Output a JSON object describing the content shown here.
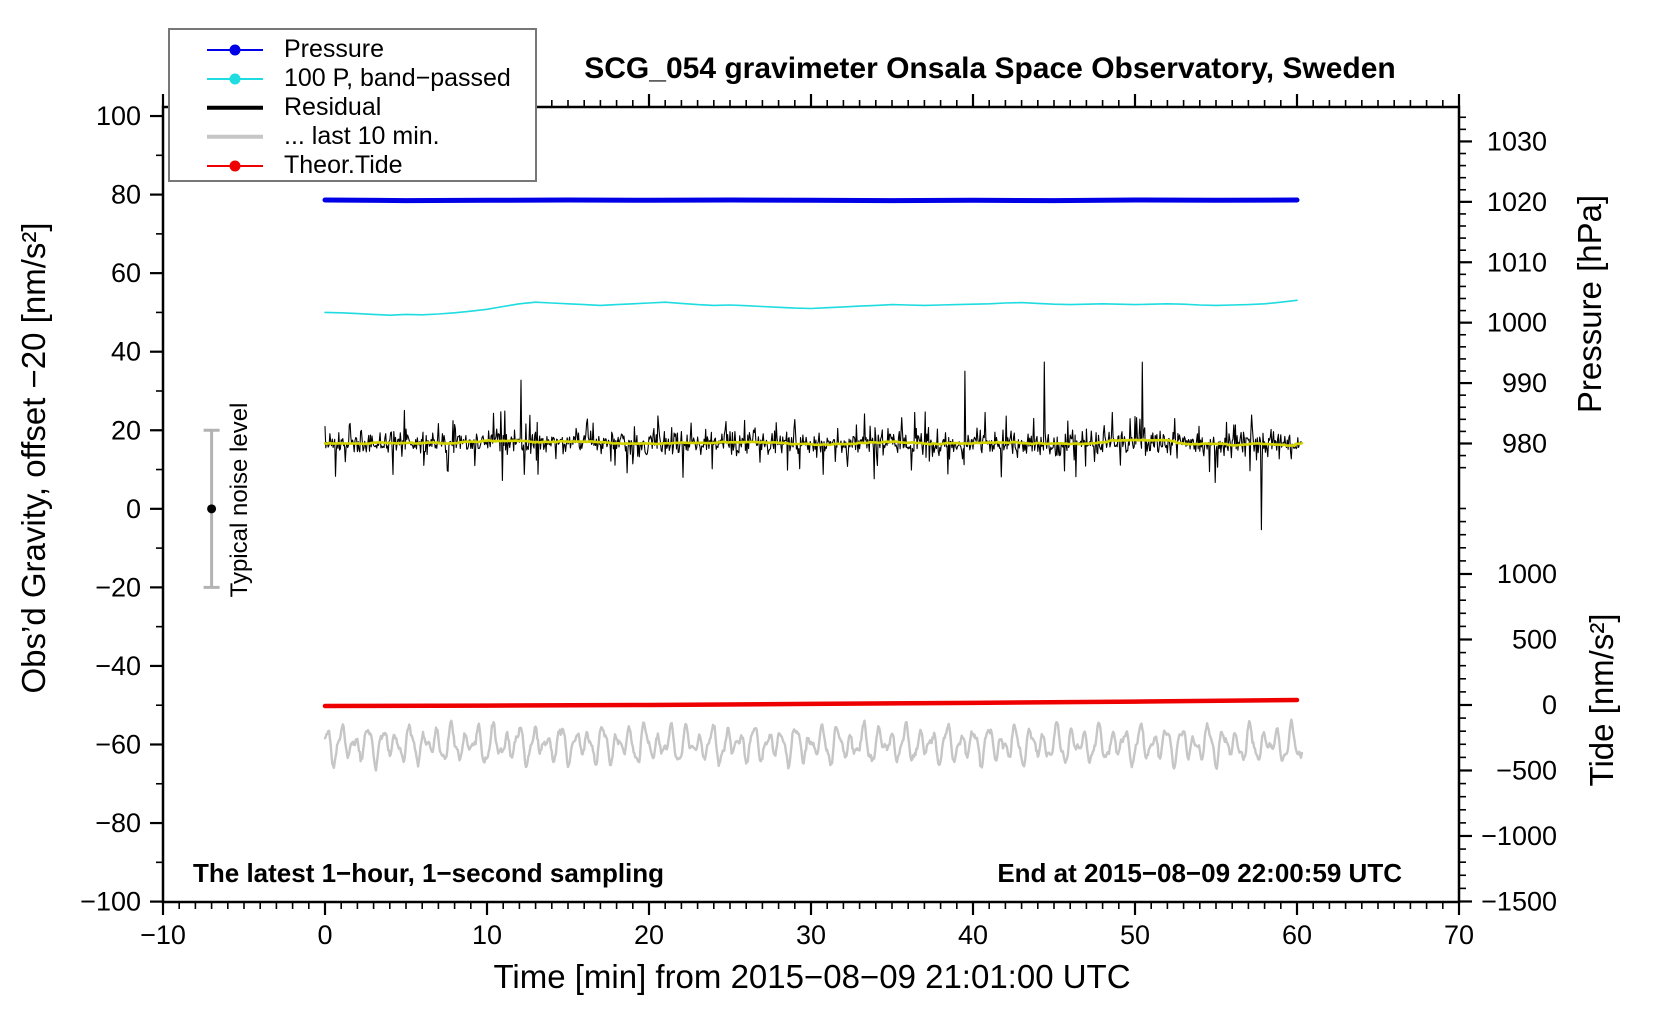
{
  "title": "SCG_054 gravimeter Onsala Space Observatory, Sweden",
  "notes": {
    "sampling": "The latest 1−hour, 1−second sampling",
    "end": "End at 2015−08−09 22:00:59 UTC",
    "noise": "Typical noise level"
  },
  "legend": {
    "items": [
      {
        "label": "Pressure",
        "color": "#0000e6",
        "style": "thin-dot"
      },
      {
        "label": "100 P, band−passed",
        "color": "#1edce0",
        "style": "thin-dot"
      },
      {
        "label": "Residual",
        "color": "#000000",
        "style": "thick"
      },
      {
        "label": "... last 10 min.",
        "color": "#c6c6c6",
        "style": "thick"
      },
      {
        "label": "Theor.Tide",
        "color": "#ee0000",
        "style": "thin-dot"
      }
    ]
  },
  "chart_data": {
    "type": "line",
    "title": "SCG_054 gravimeter Onsala Space Observatory, Sweden",
    "xlabel": "Time [min] from 2015−08−09 21:01:00 UTC",
    "x_axis": {
      "range": [
        -10,
        70
      ],
      "minor_step": 1,
      "minor_range": [
        -10,
        70
      ],
      "ticks": [
        {
          "v": -10,
          "label": "−10"
        },
        {
          "v": 0,
          "label": "0"
        },
        {
          "v": 10,
          "label": "10"
        },
        {
          "v": 20,
          "label": "20"
        },
        {
          "v": 30,
          "label": "30"
        },
        {
          "v": 40,
          "label": "40"
        },
        {
          "v": 50,
          "label": "50"
        },
        {
          "v": 60,
          "label": "60"
        },
        {
          "v": 70,
          "label": "70"
        }
      ]
    },
    "axes": {
      "gravity": {
        "label": "Obs’d Gravity, offset −20 [nm/s²]",
        "range": [
          -100.1,
          102.3
        ],
        "minor_step": 10,
        "minor_range": [
          -100,
          100
        ],
        "ticks": [
          {
            "v": 100,
            "label": "100"
          },
          {
            "v": 80,
            "label": "80"
          },
          {
            "v": 60,
            "label": "60"
          },
          {
            "v": 40,
            "label": "40"
          },
          {
            "v": 20,
            "label": "20"
          },
          {
            "v": 0,
            "label": "0"
          },
          {
            "v": -20,
            "label": "−20"
          },
          {
            "v": -40,
            "label": "−40"
          },
          {
            "v": -60,
            "label": "−60"
          },
          {
            "v": -80,
            "label": "−80"
          },
          {
            "v": -100,
            "label": "−100"
          }
        ]
      },
      "pressure": {
        "label": "Pressure [hPa]",
        "range": [
          904.1,
          1035.7
        ],
        "minor_step": 2,
        "minor_range": [
          976,
          1034
        ],
        "ticks": [
          {
            "v": 1030,
            "label": "1030"
          },
          {
            "v": 1020,
            "label": "1020"
          },
          {
            "v": 1010,
            "label": "1010"
          },
          {
            "v": 1000,
            "label": "1000"
          },
          {
            "v": 990,
            "label": "990"
          },
          {
            "v": 980,
            "label": "980"
          }
        ]
      },
      "tide": {
        "label": "Tide [nm/s²]",
        "range": [
          -1504,
          4565
        ],
        "minor_step": 100,
        "minor_range": [
          -1500,
          1500
        ],
        "ticks": [
          {
            "v": 1000,
            "label": "1000"
          },
          {
            "v": 500,
            "label": "500"
          },
          {
            "v": 0,
            "label": "0"
          },
          {
            "v": -500,
            "label": "−500"
          },
          {
            "v": -1000,
            "label": "−1000"
          },
          {
            "v": -1500,
            "label": "−1500"
          }
        ]
      }
    },
    "noise_bar": {
      "t": -7,
      "low": -20,
      "high": 20,
      "dot": 0,
      "color": "#b3b3b3"
    },
    "series": [
      {
        "name": "last10",
        "axis": "gravity",
        "color": "#c6c6c6",
        "width": 2.4,
        "generate": {
          "kind": "osc",
          "seed": 11,
          "center": -60,
          "components": [
            [
              3.1,
              0.85,
              0.5
            ],
            [
              1.7,
              1.33,
              2.1
            ],
            [
              1.3,
              0.44,
              4.0
            ]
          ],
          "noise": 0.35,
          "step": 0.05,
          "t0": 0,
          "t1": 60.3
        }
      },
      {
        "name": "theor_tide",
        "axis": "tide",
        "color": "#ee0000",
        "width": 4.5,
        "points": [
          [
            0,
            -8
          ],
          [
            10,
            -5
          ],
          [
            20,
            0
          ],
          [
            30,
            8
          ],
          [
            40,
            16
          ],
          [
            50,
            26
          ],
          [
            60,
            38
          ]
        ]
      },
      {
        "name": "residual",
        "axis": "gravity",
        "color": "#000000",
        "width": 1.1,
        "generate": {
          "kind": "noise",
          "seed": 7,
          "center": 16.8,
          "sigma": 1.5,
          "spike_prob": 0.1,
          "spike_min": 2,
          "spike_max": 8,
          "big_spike_prob": 0.006,
          "big_spike_max": 14,
          "step": 0.05,
          "t0": 0,
          "t1": 60.3
        }
      },
      {
        "name": "residual_smooth",
        "axis": "gravity",
        "color": "#d4d400",
        "width": 2.6,
        "generate": {
          "kind": "smooth-of",
          "source": "residual",
          "window": 41
        }
      },
      {
        "name": "band_passed",
        "axis": "gravity",
        "color": "#1edce0",
        "width": 1.6,
        "points": [
          [
            0,
            50.0
          ],
          [
            1,
            49.9
          ],
          [
            2,
            49.7
          ],
          [
            3,
            49.5
          ],
          [
            4,
            49.3
          ],
          [
            5,
            49.5
          ],
          [
            6,
            49.4
          ],
          [
            7,
            49.6
          ],
          [
            8,
            49.9
          ],
          [
            9,
            50.3
          ],
          [
            10,
            50.8
          ],
          [
            11,
            51.5
          ],
          [
            12,
            52.2
          ],
          [
            13,
            52.6
          ],
          [
            14,
            52.4
          ],
          [
            15,
            52.2
          ],
          [
            16,
            52.0
          ],
          [
            17,
            51.8
          ],
          [
            18,
            52.0
          ],
          [
            19,
            52.2
          ],
          [
            20,
            52.4
          ],
          [
            21,
            52.6
          ],
          [
            22,
            52.3
          ],
          [
            23,
            52.0
          ],
          [
            24,
            51.8
          ],
          [
            25,
            51.9
          ],
          [
            26,
            51.7
          ],
          [
            27,
            51.5
          ],
          [
            28,
            51.3
          ],
          [
            29,
            51.1
          ],
          [
            30,
            51.0
          ],
          [
            31,
            51.2
          ],
          [
            32,
            51.4
          ],
          [
            33,
            51.6
          ],
          [
            34,
            51.8
          ],
          [
            35,
            52.0
          ],
          [
            36,
            51.9
          ],
          [
            37,
            51.8
          ],
          [
            38,
            51.9
          ],
          [
            39,
            52.0
          ],
          [
            40,
            52.1
          ],
          [
            41,
            52.2
          ],
          [
            42,
            52.4
          ],
          [
            43,
            52.5
          ],
          [
            44,
            52.3
          ],
          [
            45,
            52.1
          ],
          [
            46,
            52.0
          ],
          [
            47,
            52.1
          ],
          [
            48,
            52.2
          ],
          [
            49,
            52.1
          ],
          [
            50,
            52.0
          ],
          [
            51,
            52.1
          ],
          [
            52,
            52.2
          ],
          [
            53,
            52.1
          ],
          [
            54,
            51.9
          ],
          [
            55,
            51.8
          ],
          [
            56,
            51.9
          ],
          [
            57,
            52.0
          ],
          [
            58,
            52.2
          ],
          [
            59,
            52.6
          ],
          [
            60,
            53.1
          ]
        ]
      },
      {
        "name": "pressure",
        "axis": "pressure",
        "color": "#0000e6",
        "width": 5,
        "points": [
          [
            0,
            1020.3
          ],
          [
            5,
            1020.2
          ],
          [
            10,
            1020.25
          ],
          [
            15,
            1020.3
          ],
          [
            20,
            1020.25
          ],
          [
            25,
            1020.3
          ],
          [
            30,
            1020.25
          ],
          [
            35,
            1020.2
          ],
          [
            40,
            1020.25
          ],
          [
            45,
            1020.2
          ],
          [
            50,
            1020.3
          ],
          [
            55,
            1020.25
          ],
          [
            60,
            1020.3
          ]
        ]
      }
    ]
  }
}
